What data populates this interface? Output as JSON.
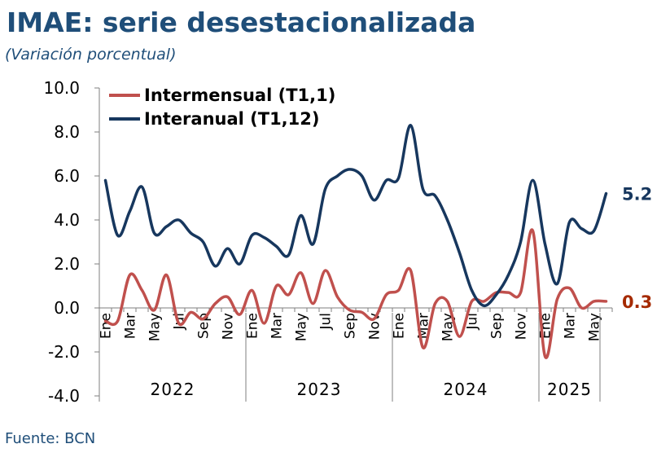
{
  "title": "IMAE: serie desestacionalizada",
  "subtitle": "(Variación porcentual)",
  "source": "Fuente: BCN",
  "colors": {
    "title": "#1f4e79",
    "intermensual": "#c0504d",
    "interanual": "#17375e",
    "end_label_intermensual": "#a52a00",
    "end_label_interanual": "#17375e"
  },
  "chart_data": {
    "type": "line",
    "title": "IMAE: serie desestacionalizada",
    "subtitle": "(Variación porcentual)",
    "xlabel": "",
    "ylabel": "",
    "ylim": [
      -4.0,
      10.0
    ],
    "yticks": [
      "10.0",
      "8.0",
      "6.0",
      "4.0",
      "2.0",
      "0.0",
      "-2.0",
      "-4.0"
    ],
    "grid": false,
    "legend_position": "top-left",
    "years": [
      {
        "label": "2022",
        "months": 12
      },
      {
        "label": "2023",
        "months": 12
      },
      {
        "label": "2024",
        "months": 12
      },
      {
        "label": "2025",
        "months": 5
      }
    ],
    "tick_labels": [
      "Ene",
      "Mar",
      "May",
      "Jul",
      "Sep",
      "Nov",
      "Ene",
      "Mar",
      "May",
      "Jul",
      "Sep",
      "Nov",
      "Ene",
      "Mar",
      "May",
      "Jul",
      "Sep",
      "Nov",
      "Ene",
      "Mar",
      "May"
    ],
    "series": [
      {
        "name": "Intermensual (T1,1)",
        "end_label": "0.3",
        "values": [
          -0.6,
          -0.6,
          1.5,
          0.8,
          -0.1,
          1.5,
          -0.7,
          -0.2,
          -0.5,
          0.2,
          0.5,
          -0.3,
          0.8,
          -0.7,
          1.0,
          0.6,
          1.6,
          0.2,
          1.7,
          0.5,
          -0.1,
          -0.2,
          -0.5,
          0.6,
          0.8,
          1.7,
          -1.8,
          0.2,
          0.3,
          -1.3,
          0.3,
          0.3,
          0.7,
          0.7,
          0.7,
          3.5,
          -2.2,
          0.4,
          0.9,
          0.0,
          0.3,
          0.3
        ]
      },
      {
        "name": "Interanual (T1,12)",
        "end_label": "5.2",
        "values": [
          5.8,
          3.3,
          4.4,
          5.5,
          3.4,
          3.7,
          4.0,
          3.4,
          3.0,
          1.9,
          2.7,
          2.0,
          3.3,
          3.2,
          2.8,
          2.4,
          4.2,
          2.9,
          5.4,
          6.0,
          6.3,
          6.0,
          4.9,
          5.8,
          5.9,
          8.3,
          5.4,
          5.1,
          4.0,
          2.5,
          0.8,
          0.1,
          0.6,
          1.5,
          3.0,
          5.8,
          2.9,
          1.1,
          3.9,
          3.6,
          3.5,
          5.2
        ]
      }
    ]
  }
}
